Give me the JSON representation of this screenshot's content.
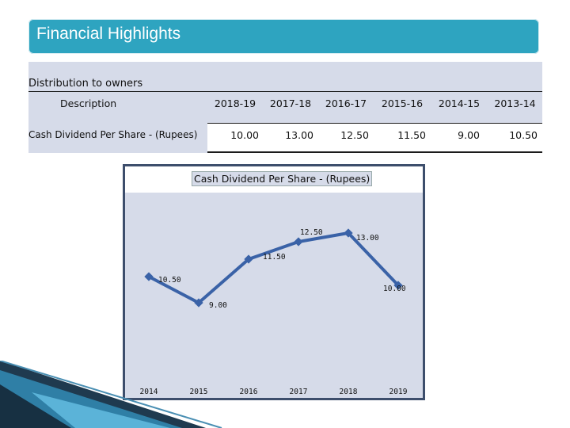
{
  "header": {
    "title": "Financial Highlights"
  },
  "table": {
    "section_title": "Distribution to owners",
    "columns": [
      "Description",
      "2018-19",
      "2017-18",
      "2016-17",
      "2015-16",
      "2014-15",
      "2013-14"
    ],
    "row": {
      "label": "Cash Dividend Per Share - (Rupees)",
      "values": [
        "10.00",
        "13.00",
        "12.50",
        "11.50",
        "9.00",
        "10.50"
      ]
    }
  },
  "chart_data": {
    "type": "line",
    "title": "Cash Dividend Per Share - (Rupees)",
    "categories": [
      "2014",
      "2015",
      "2016",
      "2017",
      "2018",
      "2019"
    ],
    "values": [
      10.5,
      9.0,
      11.5,
      12.5,
      13.0,
      10.0
    ],
    "data_labels": [
      "10.50",
      "9.00",
      "11.50",
      "12.50",
      "13.00",
      "10.00"
    ],
    "ylim": [
      0,
      14
    ],
    "xlabel": "",
    "ylabel": "",
    "series_color": "#3a62a7",
    "grid": false
  }
}
